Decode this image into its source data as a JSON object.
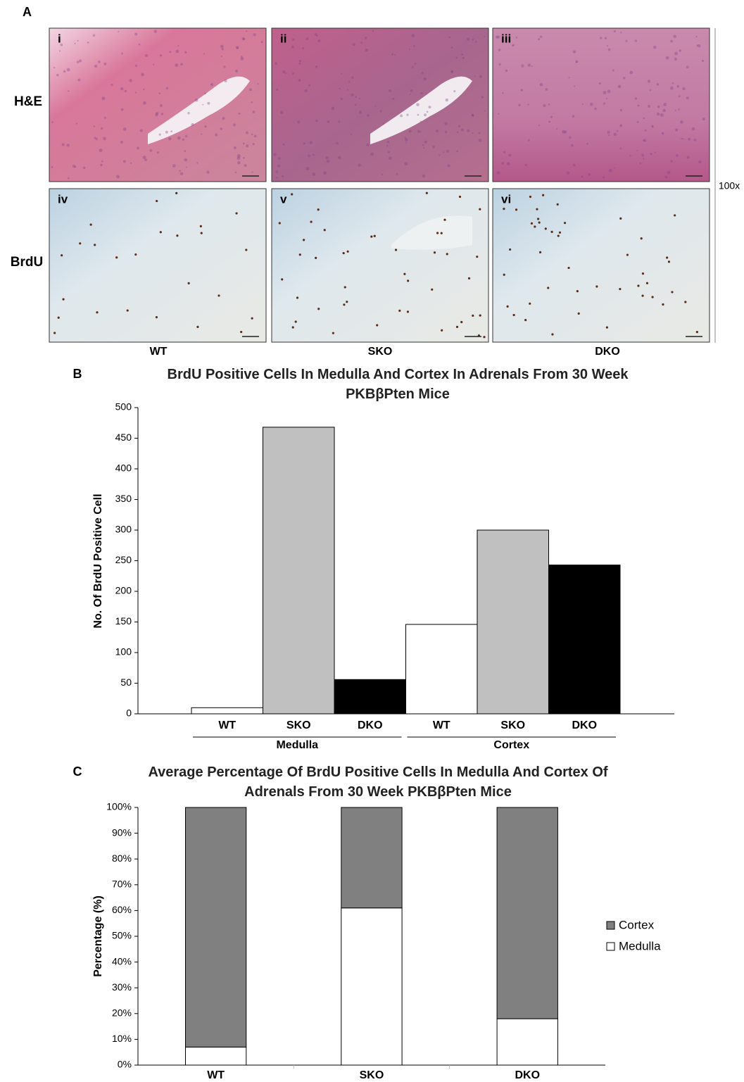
{
  "panel_a": {
    "label": "A",
    "row_labels": [
      "H&E",
      "BrdU"
    ],
    "panel_numbers": [
      "i",
      "ii",
      "iii",
      "iv",
      "v",
      "vi"
    ],
    "column_labels": [
      "WT",
      "SKO",
      "DKO"
    ],
    "magnification": "100x"
  },
  "chart_data": [
    {
      "type": "bar",
      "panel_label": "B",
      "title": "BrdU Positive Cells In Medulla And Cortex In Adrenals From 30 Week PKBβPten Mice",
      "y_label": "No. Of BrdU Positive Cell",
      "categories": [
        "WT",
        "SKO",
        "DKO",
        "WT",
        "SKO",
        "DKO"
      ],
      "groups": [
        "Medulla",
        "Cortex"
      ],
      "values": [
        10,
        468,
        56,
        146,
        300,
        243
      ],
      "colors": [
        "#ffffff",
        "#c0c0c0",
        "#000000",
        "#ffffff",
        "#c0c0c0",
        "#000000"
      ],
      "ylim": [
        0,
        500
      ],
      "yticks": [
        0,
        50,
        100,
        150,
        200,
        250,
        300,
        350,
        400,
        450,
        500
      ]
    },
    {
      "type": "stacked_bar",
      "panel_label": "C",
      "title": "Average Percentage Of BrdU Positive Cells In Medulla And Cortex Of Adrenals From 30 Week PKBβPten Mice",
      "y_label": "Percentage (%)",
      "categories": [
        "WT",
        "SKO",
        "DKO"
      ],
      "series": [
        {
          "name": "Medulla",
          "color": "#ffffff",
          "values": [
            7,
            61,
            18
          ]
        },
        {
          "name": "Cortex",
          "color": "#808080",
          "values": [
            93,
            39,
            82
          ]
        }
      ],
      "ylim": [
        0,
        100
      ],
      "yticks": [
        {
          "value": 0,
          "label": "0%"
        },
        {
          "value": 10,
          "label": "10%"
        },
        {
          "value": 20,
          "label": "20%"
        },
        {
          "value": 30,
          "label": "30%"
        },
        {
          "value": 40,
          "label": "40%"
        },
        {
          "value": 50,
          "label": "50%"
        },
        {
          "value": 60,
          "label": "60%"
        },
        {
          "value": 70,
          "label": "70%"
        },
        {
          "value": 80,
          "label": "80%"
        },
        {
          "value": 90,
          "label": "90%"
        },
        {
          "value": 100,
          "label": "100%"
        }
      ],
      "legend": "right"
    }
  ]
}
